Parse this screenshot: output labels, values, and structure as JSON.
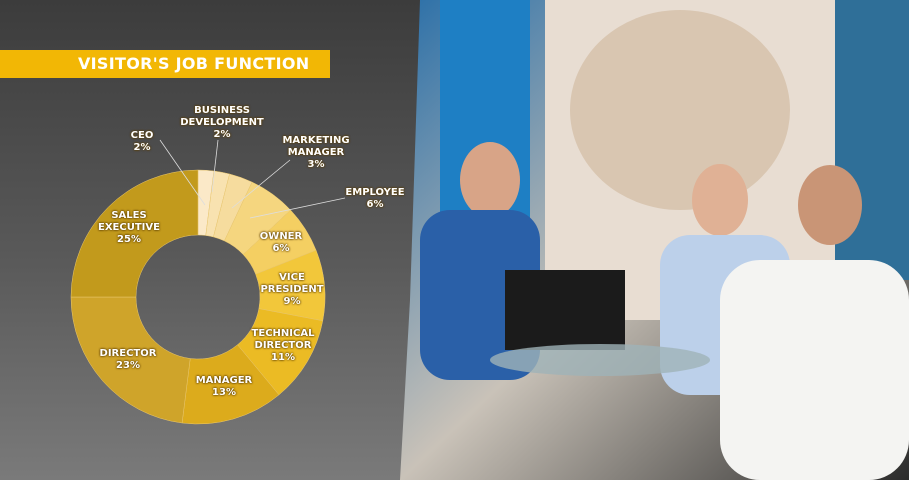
{
  "chart_data": {
    "type": "pie",
    "title": "VISITOR'S JOB FUNCTION",
    "categories": [
      "CEO",
      "BUSINESS DEVELOPMENT",
      "MARKETING MANAGER",
      "EMPLOYEE",
      "OWNER",
      "VICE PRESIDENT",
      "TECHNICAL DIRECTOR",
      "MANAGER",
      "DIRECTOR",
      "SALES EXECUTIVE"
    ],
    "values": [
      2,
      2,
      3,
      6,
      6,
      9,
      11,
      13,
      23,
      25
    ],
    "value_labels": [
      "2%",
      "2%",
      "3%",
      "6%",
      "6%",
      "9%",
      "11%",
      "13%",
      "23%",
      "25%"
    ],
    "colors": [
      "#fbe9c8",
      "#f8e2b0",
      "#f6dc9e",
      "#f5d67f",
      "#f4cf62",
      "#f2c73a",
      "#ebbb24",
      "#dcab1c",
      "#cfa42a",
      "#c29a1c"
    ],
    "donut": true
  }
}
